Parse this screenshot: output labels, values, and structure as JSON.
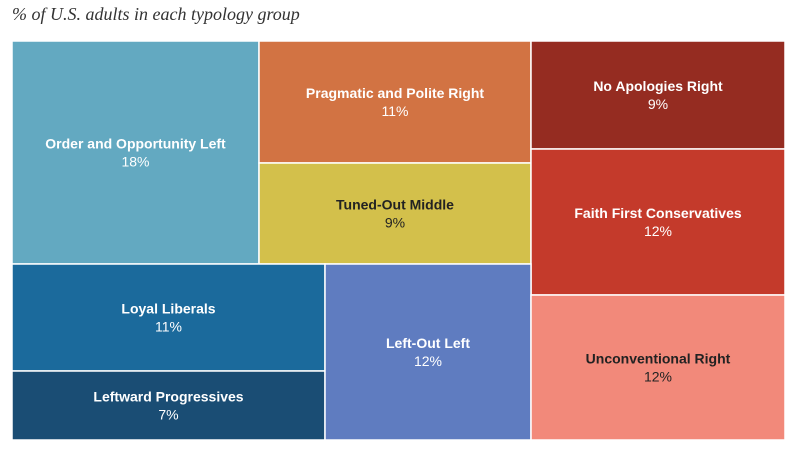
{
  "subtitle": "% of U.S. adults in each typology group",
  "chart_data": {
    "type": "treemap",
    "subtitle": "% of U.S. adults in each typology group",
    "unit": "%",
    "groups": [
      {
        "name": "Order and Opportunity Left",
        "value": 18,
        "color": "#63a9c1",
        "text_color": "#ffffff"
      },
      {
        "name": "Pragmatic and Polite Right",
        "value": 11,
        "color": "#d27343",
        "text_color": "#ffffff"
      },
      {
        "name": "Tuned-Out Middle",
        "value": 9,
        "color": "#d3c04b",
        "text_color": "#222222"
      },
      {
        "name": "No Apologies Right",
        "value": 9,
        "color": "#952c21",
        "text_color": "#ffffff"
      },
      {
        "name": "Faith First Conservatives",
        "value": 12,
        "color": "#c43a2b",
        "text_color": "#ffffff"
      },
      {
        "name": "Loyal Liberals",
        "value": 11,
        "color": "#1b6a9c",
        "text_color": "#ffffff"
      },
      {
        "name": "Leftward Progressives",
        "value": 7,
        "color": "#1a4d74",
        "text_color": "#ffffff"
      },
      {
        "name": "Left-Out Left",
        "value": 12,
        "color": "#5f7cc0",
        "text_color": "#ffffff"
      },
      {
        "name": "Unconventional Right",
        "value": 12,
        "color": "#f2897a",
        "text_color": "#222222"
      }
    ]
  }
}
